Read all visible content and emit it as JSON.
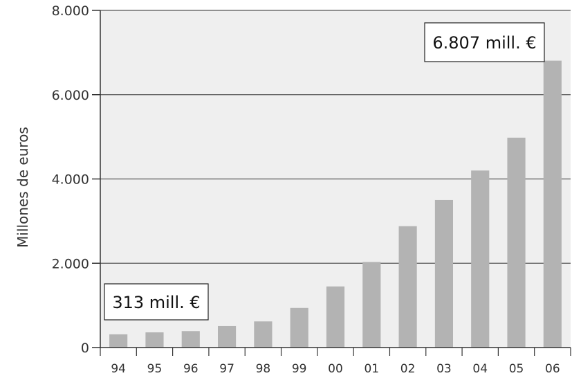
{
  "chart_data": {
    "type": "bar",
    "categories": [
      "94",
      "95",
      "96",
      "97",
      "98",
      "99",
      "00",
      "01",
      "02",
      "03",
      "04",
      "05",
      "06"
    ],
    "values": [
      313,
      360,
      390,
      510,
      620,
      940,
      1450,
      2030,
      2880,
      3500,
      4200,
      4980,
      6807
    ],
    "title": "",
    "xlabel": "",
    "ylabel": "Millones de euros",
    "ylim": [
      0,
      8000
    ],
    "yticks": [
      0,
      2000,
      4000,
      6000,
      8000
    ],
    "ytick_labels": [
      "0",
      "2.000",
      "4.000",
      "6.000",
      "8.000"
    ],
    "grid": true,
    "annotations": [
      {
        "text": "313 mill. €",
        "category": "94"
      },
      {
        "text": "6.807 mill. €",
        "category": "06"
      }
    ],
    "colors": {
      "bar": "#b3b3b3",
      "plot_background": "#efefef",
      "gridline": "#555555"
    }
  }
}
